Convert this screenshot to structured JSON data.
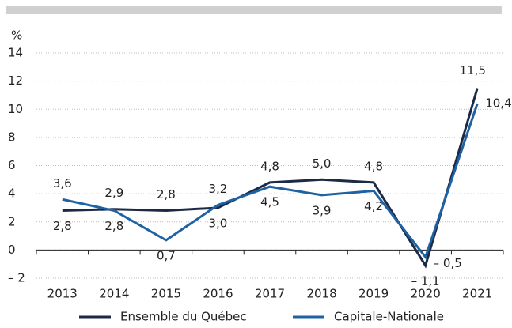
{
  "chart_data": {
    "type": "line",
    "y_label": "%",
    "categories": [
      "2013",
      "2014",
      "2015",
      "2016",
      "2017",
      "2018",
      "2019",
      "2020",
      "2021"
    ],
    "series": [
      {
        "name": "Ensemble du Québec",
        "color": "#1c2a47",
        "values": [
          2.8,
          2.9,
          2.8,
          3.0,
          4.8,
          5.0,
          4.8,
          -1.1,
          11.5
        ],
        "value_labels": [
          "2,8",
          "2,9",
          "2,8",
          "3,0",
          "4,8",
          "5,0",
          "4,8",
          "– 1,1",
          "11,5"
        ]
      },
      {
        "name": "Capitale-Nationale",
        "color": "#1f62a3",
        "values": [
          3.6,
          2.8,
          0.7,
          3.2,
          4.5,
          3.9,
          4.2,
          -0.5,
          10.4
        ],
        "value_labels": [
          "3,6",
          "2,8",
          "0,7",
          "3,2",
          "4,5",
          "3,9",
          "4,2",
          "– 0,5",
          "10,4"
        ]
      }
    ],
    "ylim": [
      -2,
      14
    ],
    "yticks": [
      {
        "value": -2,
        "label": "– 2"
      },
      0,
      2,
      4,
      6,
      8,
      10,
      12,
      14
    ],
    "grid": true,
    "legend": "bottom"
  }
}
